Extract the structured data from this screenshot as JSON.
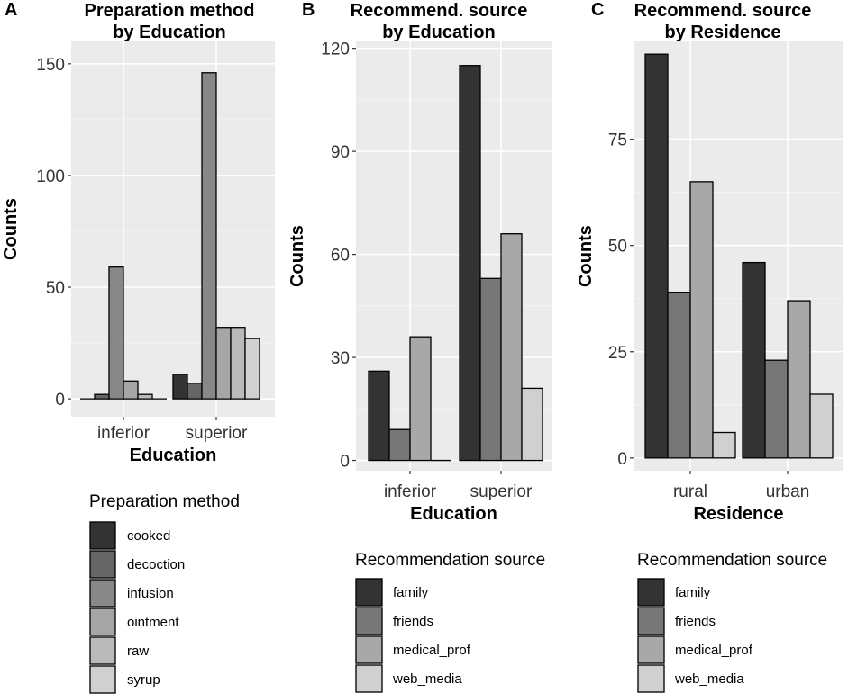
{
  "chart_data": [
    {
      "panel_letter": "A",
      "type": "bar",
      "title_lines": [
        "Preparation method",
        "by Education"
      ],
      "xlabel": "Education",
      "ylabel": "Counts",
      "categories": [
        "inferior",
        "superior"
      ],
      "ylim": [
        -8,
        160
      ],
      "yticks": [
        0,
        50,
        100,
        150
      ],
      "grid": true,
      "legend_title": "Preparation method",
      "legend_position": "bottom",
      "series": [
        {
          "name": "cooked",
          "color": "#333333",
          "values": [
            0,
            11
          ]
        },
        {
          "name": "decoction",
          "color": "#666666",
          "values": [
            2,
            7
          ]
        },
        {
          "name": "infusion",
          "color": "#888888",
          "values": [
            59,
            146
          ]
        },
        {
          "name": "ointment",
          "color": "#a6a6a6",
          "values": [
            8,
            32
          ]
        },
        {
          "name": "raw",
          "color": "#bababa",
          "values": [
            2,
            32
          ]
        },
        {
          "name": "syrup",
          "color": "#d0d0d0",
          "values": [
            0,
            27
          ]
        }
      ]
    },
    {
      "panel_letter": "B",
      "type": "bar",
      "title_lines": [
        "Recommend. source",
        "by Education"
      ],
      "xlabel": "Education",
      "ylabel": "Counts",
      "categories": [
        "inferior",
        "superior"
      ],
      "ylim": [
        -3,
        122
      ],
      "yticks": [
        0,
        30,
        60,
        90,
        120
      ],
      "grid": true,
      "legend_title": "Recommendation source",
      "legend_position": "bottom",
      "series": [
        {
          "name": "family",
          "color": "#333333",
          "values": [
            26,
            115
          ]
        },
        {
          "name": "friends",
          "color": "#777777",
          "values": [
            9,
            53
          ]
        },
        {
          "name": "medical_prof",
          "color": "#a8a8a8",
          "values": [
            36,
            66
          ]
        },
        {
          "name": "web_media",
          "color": "#d0d0d0",
          "values": [
            0,
            21
          ]
        }
      ]
    },
    {
      "panel_letter": "C",
      "type": "bar",
      "title_lines": [
        "Recommend. source",
        "by Residence"
      ],
      "xlabel": "Residence",
      "ylabel": "Counts",
      "categories": [
        "rural",
        "urban"
      ],
      "ylim": [
        -3,
        98
      ],
      "yticks": [
        0,
        25,
        50,
        75
      ],
      "grid": true,
      "legend_title": "Recommendation source",
      "legend_position": "bottom",
      "series": [
        {
          "name": "family",
          "color": "#333333",
          "values": [
            95,
            46
          ]
        },
        {
          "name": "friends",
          "color": "#777777",
          "values": [
            39,
            23
          ]
        },
        {
          "name": "medical_prof",
          "color": "#a8a8a8",
          "values": [
            65,
            37
          ]
        },
        {
          "name": "web_media",
          "color": "#d0d0d0",
          "values": [
            6,
            15
          ]
        }
      ]
    }
  ]
}
